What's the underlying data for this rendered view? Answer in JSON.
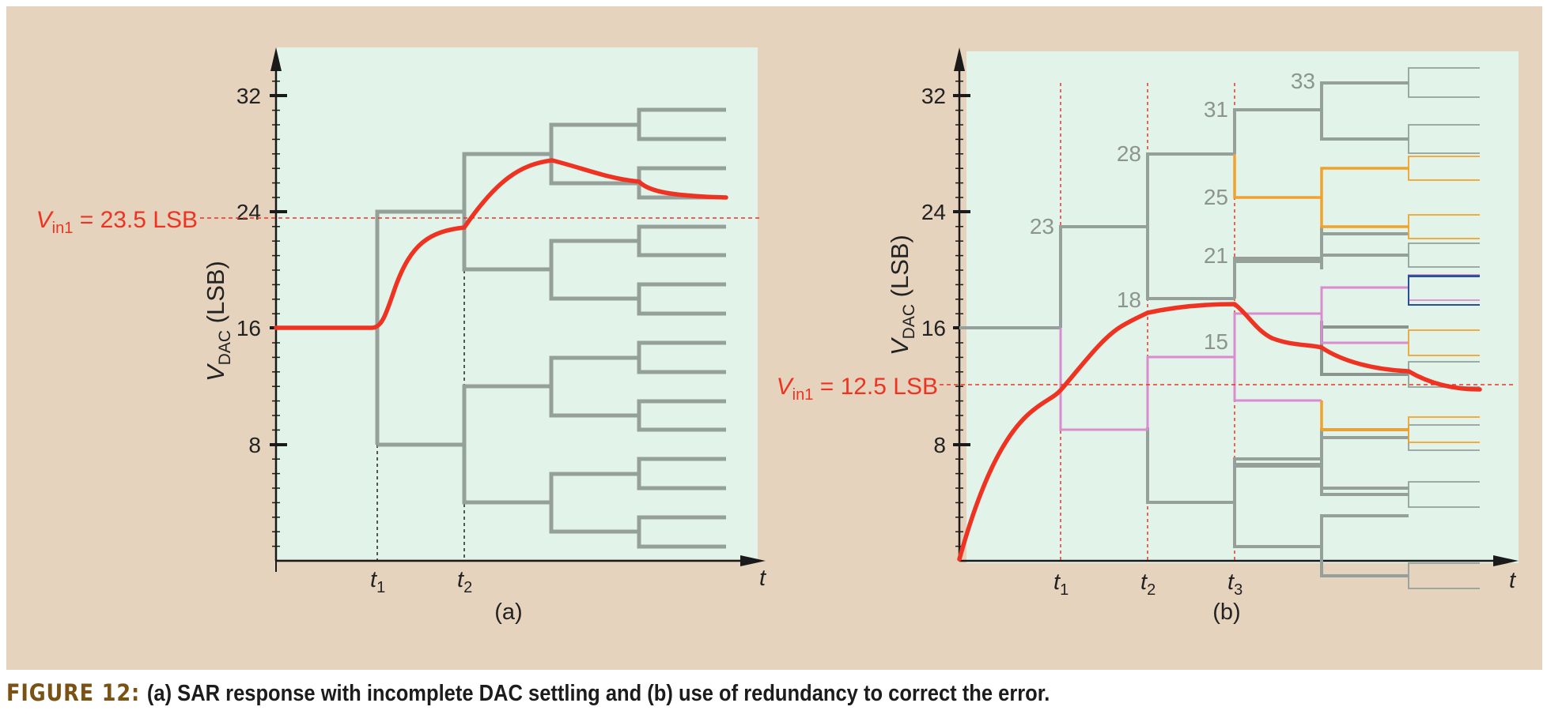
{
  "panel_a": {
    "sublabel": "(a)",
    "ylabel_main": "V",
    "ylabel_sub": "DAC",
    "ylabel_unit": " (LSB)",
    "x_axis_label": "t",
    "y_ticks": [
      "8",
      "16",
      "24",
      "32"
    ],
    "time_labels": [
      {
        "main": "t",
        "sub": "1"
      },
      {
        "main": "t",
        "sub": "2"
      }
    ],
    "vin_label": {
      "main": "V",
      "sub": "in1",
      "rest": " = 23.5 LSB"
    },
    "vin_value": 23.5,
    "y_range": [
      0,
      35
    ]
  },
  "panel_b": {
    "sublabel": "(b)",
    "ylabel_main": "V",
    "ylabel_sub": "DAC",
    "ylabel_unit": " (LSB)",
    "x_axis_label": "t",
    "y_ticks": [
      "8",
      "16",
      "24",
      "32"
    ],
    "time_labels": [
      {
        "main": "t",
        "sub": "1"
      },
      {
        "main": "t",
        "sub": "2"
      },
      {
        "main": "t",
        "sub": "3"
      }
    ],
    "vin_label": {
      "main": "V",
      "sub": "in1",
      "rest": " = 12.5 LSB"
    },
    "vin_value": 12.5,
    "y_range": [
      0,
      35
    ],
    "level_labels": [
      "23",
      "28",
      "18",
      "31",
      "25",
      "21",
      "15",
      "33"
    ]
  },
  "caption": {
    "label": "FIGURE 12:",
    "text": "(a) SAR response with incomplete DAC settling and (b) use of redundancy to correct the error."
  },
  "colors": {
    "background": "#e5d3bd",
    "plot_area": "#e2f4ea",
    "tree_gray": "#95a09a",
    "response_red": "#ee3322",
    "pink": "#d98cd0",
    "orange": "#f2a12a",
    "blue": "#2a4f9a"
  }
}
